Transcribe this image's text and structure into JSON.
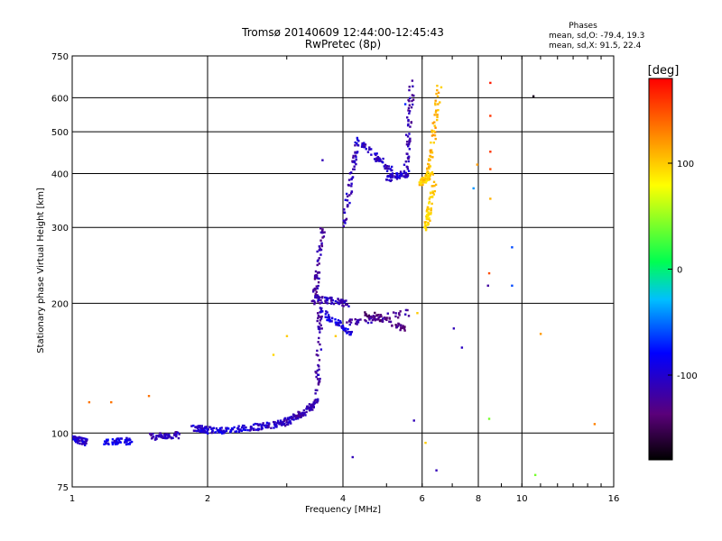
{
  "chart_data": {
    "type": "scatter",
    "title": "Tromsø 20140609 12:44:00-12:45:43",
    "subtitle": "RwPretec (8p)",
    "stats": {
      "title": "Phases",
      "line_o": "mean, sd,O: -79.4, 19.3",
      "line_x": "mean, sd,X:  91.5, 22.4"
    },
    "xlabel": "Frequency [MHz]",
    "ylabel": "Stationary phase Virtual Height [km]",
    "x_scale": "log",
    "y_scale": "log",
    "xlim": [
      1,
      16
    ],
    "ylim": [
      75,
      750
    ],
    "x_ticks": [
      1,
      2,
      4,
      6,
      8,
      10,
      16
    ],
    "x_tick_labels": [
      "1",
      "2",
      "4",
      "6",
      "8",
      "10",
      "16"
    ],
    "y_ticks": [
      75,
      100,
      200,
      300,
      400,
      500,
      600,
      750
    ],
    "y_tick_labels": [
      "75",
      "100",
      "200",
      "300",
      "400",
      "500",
      "600",
      "750"
    ],
    "grid": true,
    "colorbar": {
      "label": "[deg]",
      "range": [
        -180,
        180
      ],
      "ticks": [
        100,
        0,
        -100
      ],
      "tick_labels": [
        "100",
        "0",
        "-100"
      ]
    },
    "segments": [
      {
        "f": [
          1.0,
          1.08
        ],
        "h": [
          97,
          95
        ],
        "phase": -100
      },
      {
        "f": [
          1.18,
          1.35
        ],
        "h": [
          95,
          96
        ],
        "phase": -90
      },
      {
        "f": [
          1.5,
          1.72
        ],
        "h": [
          98,
          99
        ],
        "phase": -110
      },
      {
        "f": [
          1.85,
          2.1
        ],
        "h": [
          103,
          101
        ],
        "phase": -100
      },
      {
        "f": [
          2.1,
          2.5
        ],
        "h": [
          101,
          103
        ],
        "phase": -95
      },
      {
        "f": [
          2.5,
          2.9
        ],
        "h": [
          103,
          105
        ],
        "phase": -105
      },
      {
        "f": [
          2.9,
          3.2
        ],
        "h": [
          105,
          110
        ],
        "phase": -110
      },
      {
        "f": [
          3.2,
          3.5
        ],
        "h": [
          110,
          118
        ],
        "phase": -115
      },
      {
        "f": [
          3.5,
          3.56
        ],
        "h": [
          120,
          205
        ],
        "phase": -115
      },
      {
        "f": [
          3.45,
          3.6
        ],
        "h": [
          200,
          300
        ],
        "phase": -120
      },
      {
        "f": [
          3.5,
          4.1
        ],
        "h": [
          205,
          200
        ],
        "phase": -110
      },
      {
        "f": [
          3.6,
          4.2
        ],
        "h": [
          190,
          170
        ],
        "phase": -95
      },
      {
        "f": [
          4.0,
          4.3
        ],
        "h": [
          300,
          470
        ],
        "phase": -110
      },
      {
        "f": [
          4.3,
          5.2
        ],
        "h": [
          480,
          400
        ],
        "phase": -105
      },
      {
        "f": [
          4.1,
          5.6
        ],
        "h": [
          180,
          190
        ],
        "phase": -120
      },
      {
        "f": [
          4.5,
          5.5
        ],
        "h": [
          190,
          175
        ],
        "phase": -135
      },
      {
        "f": [
          5.0,
          5.55
        ],
        "h": [
          390,
          400
        ],
        "phase": -100
      },
      {
        "f": [
          5.5,
          5.7
        ],
        "h": [
          400,
          650
        ],
        "phase": -115
      },
      {
        "f": [
          5.9,
          6.3
        ],
        "h": [
          380,
          400
        ],
        "phase": 100
      },
      {
        "f": [
          6.1,
          6.4
        ],
        "h": [
          300,
          380
        ],
        "phase": 100
      },
      {
        "f": [
          6.2,
          6.55
        ],
        "h": [
          400,
          640
        ],
        "phase": 110
      }
    ],
    "points": [
      {
        "f": 1.09,
        "h": 118,
        "phase": 135
      },
      {
        "f": 1.22,
        "h": 118,
        "phase": 135
      },
      {
        "f": 1.48,
        "h": 122,
        "phase": 135
      },
      {
        "f": 2.8,
        "h": 152,
        "phase": 95
      },
      {
        "f": 3.0,
        "h": 168,
        "phase": 100
      },
      {
        "f": 3.6,
        "h": 430,
        "phase": -110
      },
      {
        "f": 3.85,
        "h": 168,
        "phase": 100
      },
      {
        "f": 4.2,
        "h": 88,
        "phase": -110
      },
      {
        "f": 5.5,
        "h": 580,
        "phase": -70
      },
      {
        "f": 5.75,
        "h": 107,
        "phase": -110
      },
      {
        "f": 5.85,
        "h": 190,
        "phase": 100
      },
      {
        "f": 6.1,
        "h": 95,
        "phase": 100
      },
      {
        "f": 6.45,
        "h": 82,
        "phase": -110
      },
      {
        "f": 7.05,
        "h": 175,
        "phase": -110
      },
      {
        "f": 7.35,
        "h": 158,
        "phase": -105
      },
      {
        "f": 7.8,
        "h": 370,
        "phase": -40
      },
      {
        "f": 7.95,
        "h": 420,
        "phase": 120
      },
      {
        "f": 8.5,
        "h": 650,
        "phase": 170
      },
      {
        "f": 8.5,
        "h": 545,
        "phase": 160
      },
      {
        "f": 8.5,
        "h": 450,
        "phase": 160
      },
      {
        "f": 8.5,
        "h": 410,
        "phase": 150
      },
      {
        "f": 8.5,
        "h": 350,
        "phase": 110
      },
      {
        "f": 8.45,
        "h": 235,
        "phase": 150
      },
      {
        "f": 8.4,
        "h": 220,
        "phase": -120
      },
      {
        "f": 8.45,
        "h": 108,
        "phase": 40
      },
      {
        "f": 9.5,
        "h": 270,
        "phase": -60
      },
      {
        "f": 9.5,
        "h": 220,
        "phase": -60
      },
      {
        "f": 10.6,
        "h": 605,
        "phase": -170
      },
      {
        "f": 10.7,
        "h": 80,
        "phase": 40
      },
      {
        "f": 11.0,
        "h": 170,
        "phase": 120
      },
      {
        "f": 14.5,
        "h": 105,
        "phase": 130
      }
    ]
  }
}
